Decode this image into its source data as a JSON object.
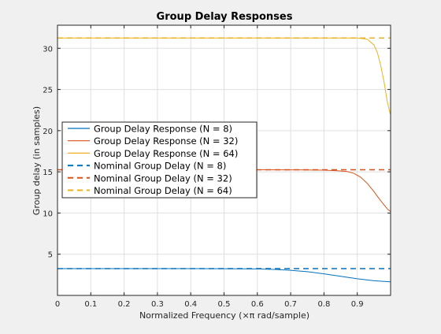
{
  "chart_data": {
    "type": "line",
    "title": "Group Delay Responses",
    "xlabel": "Normalized Frequency (×π rad/sample)",
    "ylabel": "Group delay (in samples)",
    "xlim": [
      0,
      1
    ],
    "ylim": [
      0,
      32.8
    ],
    "xticks": [
      0,
      0.1,
      0.2,
      0.3,
      0.4,
      0.5,
      0.6,
      0.7,
      0.8,
      0.9
    ],
    "xtick_labels": [
      "0",
      "0.1",
      "0.2",
      "0.3",
      "0.4",
      "0.5",
      "0.6",
      "0.7",
      "0.8",
      "0.9"
    ],
    "yticks": [
      5,
      10,
      15,
      20,
      25,
      30
    ],
    "ytick_labels": [
      "5",
      "10",
      "15",
      "20",
      "25",
      "30"
    ],
    "grid": true,
    "legend_position": "left-middle",
    "series": [
      {
        "name": "Group Delay Response (N = 8)",
        "color": "#0072bd",
        "style": "solid",
        "x": [
          0,
          0.1,
          0.2,
          0.3,
          0.4,
          0.5,
          0.55,
          0.6,
          0.65,
          0.7,
          0.75,
          0.8,
          0.85,
          0.9,
          0.95,
          0.999
        ],
        "y": [
          3.25,
          3.25,
          3.25,
          3.25,
          3.25,
          3.24,
          3.23,
          3.21,
          3.16,
          3.05,
          2.88,
          2.62,
          2.32,
          2.02,
          1.78,
          1.65
        ]
      },
      {
        "name": "Group Delay Response (N = 32)",
        "color": "#d95319",
        "style": "solid",
        "x": [
          0,
          0.1,
          0.2,
          0.3,
          0.4,
          0.5,
          0.6,
          0.7,
          0.75,
          0.8,
          0.84,
          0.87,
          0.89,
          0.91,
          0.93,
          0.95,
          0.97,
          0.99,
          0.999
        ],
        "y": [
          15.25,
          15.25,
          15.25,
          15.25,
          15.25,
          15.25,
          15.25,
          15.24,
          15.23,
          15.2,
          15.14,
          15.03,
          14.8,
          14.35,
          13.6,
          12.6,
          11.5,
          10.5,
          10.2
        ]
      },
      {
        "name": "Group Delay Response (N = 64)",
        "color": "#edb120",
        "style": "solid",
        "x": [
          0,
          0.1,
          0.2,
          0.3,
          0.4,
          0.5,
          0.6,
          0.7,
          0.8,
          0.9,
          0.93,
          0.95,
          0.96,
          0.97,
          0.98,
          0.99,
          0.999
        ],
        "y": [
          31.25,
          31.25,
          31.25,
          31.25,
          31.25,
          31.25,
          31.25,
          31.25,
          31.25,
          31.24,
          31.1,
          30.4,
          29.5,
          28.0,
          26.0,
          23.5,
          22.0
        ]
      },
      {
        "name": "Nominal Group Delay (N = 8)",
        "color": "#0072bd",
        "style": "dashed",
        "x": [
          0,
          1
        ],
        "y": [
          3.25,
          3.25
        ]
      },
      {
        "name": "Nominal Group Delay (N = 32)",
        "color": "#d95319",
        "style": "dashed",
        "x": [
          0,
          1
        ],
        "y": [
          15.25,
          15.25
        ]
      },
      {
        "name": "Nominal Group Delay (N = 64)",
        "color": "#edb120",
        "style": "dashed",
        "x": [
          0,
          1
        ],
        "y": [
          31.25,
          31.25
        ]
      }
    ]
  }
}
